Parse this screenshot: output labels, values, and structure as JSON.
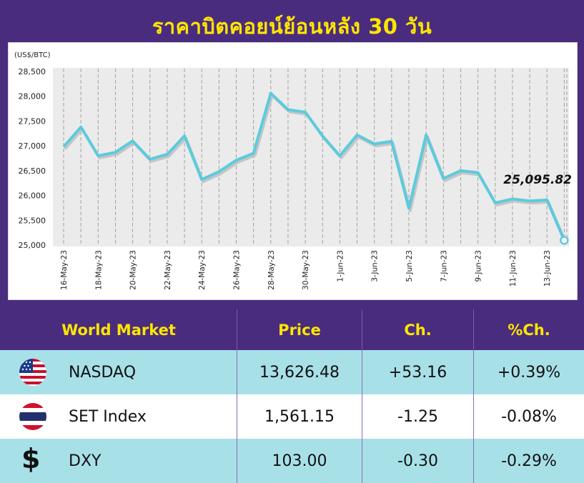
{
  "title": "ราคาบิตคอยน์ย้อนหลัง 30 วัน",
  "chart_data": {
    "type": "line",
    "yunit": "(US$/BTC)",
    "ylim": [
      25000,
      28500
    ],
    "yticks": [
      "25,000",
      "25,500",
      "26,000",
      "26,500",
      "27,000",
      "27,500",
      "28,000",
      "28,500"
    ],
    "xticks": [
      "16-May-23",
      "18-May-23",
      "20-May-23",
      "22-May-23",
      "24-May-23",
      "26-May-23",
      "28-May-23",
      "30-May-23",
      "1-Jun-23",
      "3-Jun-23",
      "5-Jun-23",
      "7-Jun-23",
      "9-Jun-23",
      "11-Jun-23",
      "13-Jun-23"
    ],
    "grid": "vertical-dashed",
    "line_color": "#5bcbdc",
    "series": [
      {
        "x": [
          "16-May-23",
          "17-May-23",
          "18-May-23",
          "19-May-23",
          "20-May-23",
          "21-May-23",
          "22-May-23",
          "23-May-23",
          "24-May-23",
          "25-May-23",
          "26-May-23",
          "27-May-23",
          "28-May-23",
          "29-May-23",
          "30-May-23",
          "31-May-23",
          "1-Jun-23",
          "2-Jun-23",
          "3-Jun-23",
          "4-Jun-23",
          "5-Jun-23",
          "6-Jun-23",
          "7-Jun-23",
          "8-Jun-23",
          "9-Jun-23",
          "10-Jun-23",
          "11-Jun-23",
          "12-Jun-23",
          "13-Jun-23",
          "14-Jun-23"
        ],
        "values": [
          26980,
          27380,
          26800,
          26870,
          27100,
          26730,
          26830,
          27200,
          26320,
          26480,
          26710,
          26850,
          28060,
          27730,
          27680,
          27200,
          26800,
          27220,
          27040,
          27090,
          25740,
          27220,
          26340,
          26500,
          26460,
          25850,
          25930,
          25890,
          25910,
          25095.82
        ]
      }
    ],
    "last_label": "25,095.82"
  },
  "table": {
    "headers": [
      "World Market",
      "Price",
      "Ch.",
      "%Ch."
    ],
    "rows": [
      {
        "icon": "us-flag-icon",
        "name": "NASDAQ",
        "price": "13,626.48",
        "change": "+53.16",
        "pct": "+0.39%"
      },
      {
        "icon": "thai-flag-icon",
        "name": "SET Index",
        "price": "1,561.15",
        "change": "-1.25",
        "pct": "-0.08%"
      },
      {
        "icon": "dollar-sign-icon",
        "name": "DXY",
        "price": "103.00",
        "change": "-0.30",
        "pct": "-0.29%"
      }
    ]
  },
  "colors": {
    "background": "#4a2c7e",
    "title": "#ffe600",
    "row_alt": "#a8e0e8",
    "line": "#5bcbdc"
  }
}
